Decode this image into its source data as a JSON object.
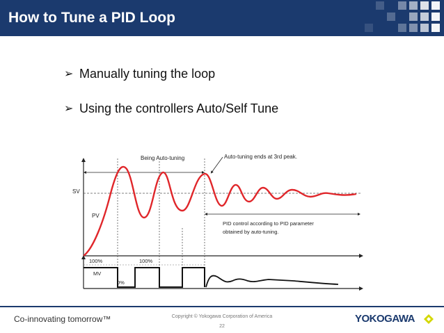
{
  "slide": {
    "title": "How to Tune a PID Loop",
    "accent_color": "#1b3a6e",
    "bullets": [
      "Manually tuning the loop",
      "Using the controllers Auto/Self Tune"
    ],
    "bullet_icon": "arrowhead-bullet-icon"
  },
  "diagram": {
    "being_auto_tuning": "Being Auto-tuning",
    "ends_at_peak": "Auto-tuning ends at 3rd peak.",
    "sv": "SV",
    "pv": "PV",
    "pid_note_line1": "PID control according to PID parameter",
    "pid_note_line2": "obtained by auto-tuning.",
    "mv": "MV",
    "mv_high_1": "100%",
    "mv_high_2": "100%",
    "mv_low": "0%",
    "curve_color": "#e0262a"
  },
  "footer": {
    "tagline": "Co-innovating tomorrow™",
    "copyright": "Copyright © Yokogawa Corporation of America",
    "page_number": "22",
    "logo": "YOKOGAWA",
    "logo_mark_color": "#d4d800"
  }
}
